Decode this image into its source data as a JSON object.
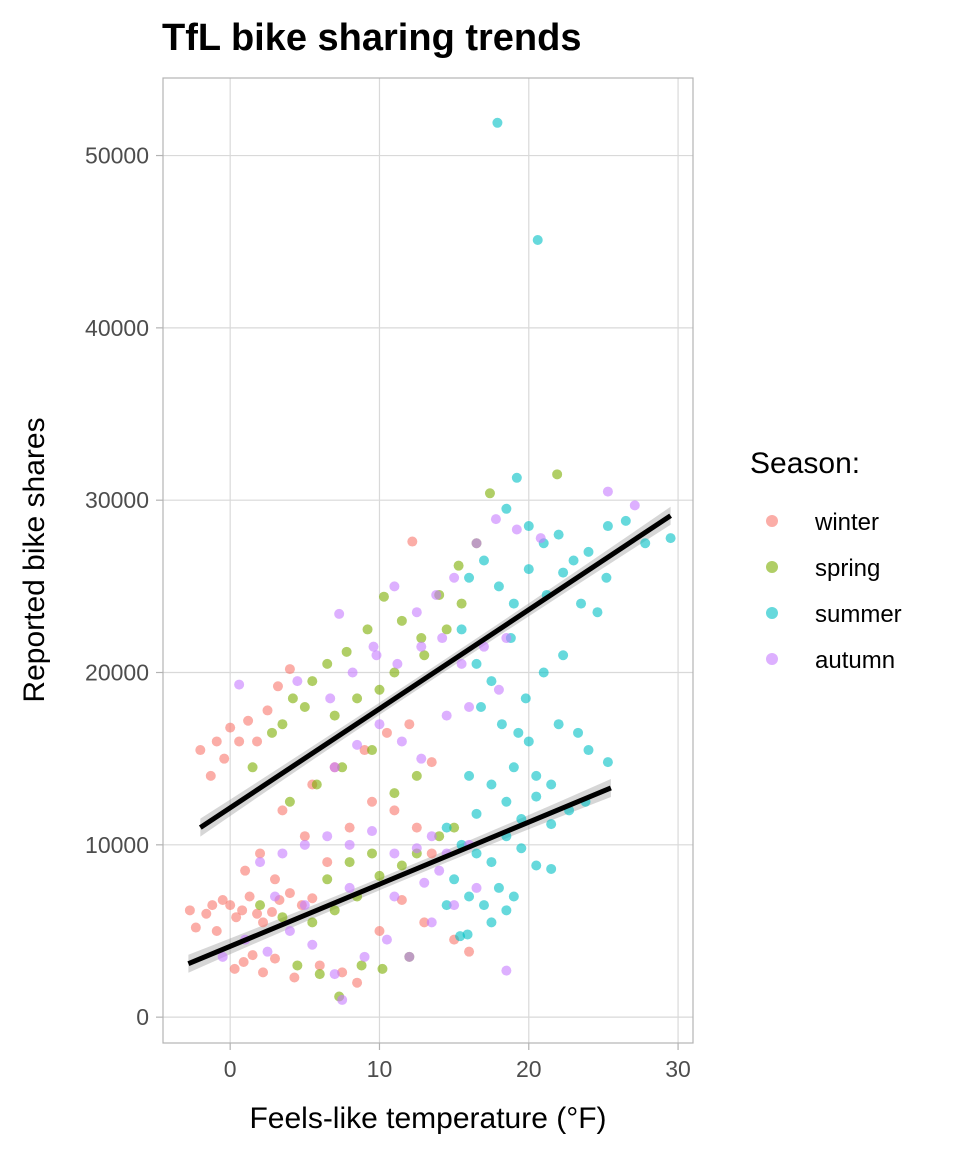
{
  "chart_data": {
    "type": "scatter",
    "title": "TfL bike sharing trends",
    "xlabel": "Feels-like temperature (°F)",
    "ylabel": "Reported bike shares",
    "xlim": [
      -4.5,
      31
    ],
    "ylim": [
      -1500,
      54500
    ],
    "x_ticks": [
      0,
      10,
      20,
      30
    ],
    "y_ticks": [
      0,
      10000,
      20000,
      30000,
      40000,
      50000
    ],
    "grid": true,
    "legend": {
      "title": "Season:",
      "placement": "right",
      "entries": [
        {
          "name": "winter",
          "color": "#F8766D"
        },
        {
          "name": "spring",
          "color": "#7CAE00"
        },
        {
          "name": "summer",
          "color": "#00BFC4"
        },
        {
          "name": "autumn",
          "color": "#C77CFF"
        }
      ]
    },
    "series": [
      {
        "name": "winter",
        "color": "#F8766D",
        "points": [
          [
            -2.7,
            6200
          ],
          [
            -2.3,
            5200
          ],
          [
            -1.6,
            6000
          ],
          [
            -1.2,
            6500
          ],
          [
            -0.9,
            5000
          ],
          [
            -0.5,
            6800
          ],
          [
            0,
            6500
          ],
          [
            0.4,
            5800
          ],
          [
            0.8,
            6200
          ],
          [
            1.3,
            7000
          ],
          [
            1.8,
            6000
          ],
          [
            2.2,
            5500
          ],
          [
            2.8,
            6100
          ],
          [
            3.3,
            6800
          ],
          [
            4,
            7200
          ],
          [
            4.8,
            6500
          ],
          [
            5.5,
            6900
          ],
          [
            -2,
            15500
          ],
          [
            -1.3,
            14000
          ],
          [
            -0.9,
            16000
          ],
          [
            -0.4,
            15000
          ],
          [
            0,
            16800
          ],
          [
            0.6,
            16000
          ],
          [
            1.2,
            17200
          ],
          [
            1.8,
            16000
          ],
          [
            2.5,
            17800
          ],
          [
            3.2,
            19200
          ],
          [
            4,
            20200
          ],
          [
            0.3,
            2800
          ],
          [
            0.9,
            3200
          ],
          [
            1.5,
            3600
          ],
          [
            2.2,
            2600
          ],
          [
            3,
            3400
          ],
          [
            4.3,
            2300
          ],
          [
            6,
            3000
          ],
          [
            7.5,
            2600
          ],
          [
            8.5,
            2000
          ],
          [
            10,
            5000
          ],
          [
            11.5,
            6800
          ],
          [
            13,
            5500
          ],
          [
            15,
            4500
          ],
          [
            16,
            3800
          ],
          [
            12.2,
            27600
          ],
          [
            3.5,
            12000
          ],
          [
            5.5,
            13500
          ],
          [
            7,
            14500
          ],
          [
            9,
            15500
          ],
          [
            10.5,
            16500
          ],
          [
            12,
            17000
          ],
          [
            13.5,
            14800
          ],
          [
            1,
            8500
          ],
          [
            2,
            9500
          ],
          [
            3,
            8000
          ],
          [
            5,
            10500
          ],
          [
            6.5,
            9000
          ],
          [
            8,
            11000
          ],
          [
            9.5,
            12500
          ],
          [
            11,
            12000
          ],
          [
            12.5,
            11000
          ],
          [
            13.5,
            9500
          ]
        ]
      },
      {
        "name": "spring",
        "color": "#7CAE00",
        "points": [
          [
            1.5,
            14500
          ],
          [
            2.8,
            16500
          ],
          [
            4.2,
            18500
          ],
          [
            5.5,
            19500
          ],
          [
            6.5,
            20500
          ],
          [
            7.8,
            21200
          ],
          [
            9.2,
            22500
          ],
          [
            10.3,
            24400
          ],
          [
            11.5,
            23000
          ],
          [
            12.8,
            22000
          ],
          [
            14,
            24500
          ],
          [
            15.3,
            26200
          ],
          [
            16.5,
            27500
          ],
          [
            17.4,
            30400
          ],
          [
            21.9,
            31500
          ],
          [
            3.5,
            17000
          ],
          [
            5,
            18000
          ],
          [
            7,
            17500
          ],
          [
            8.5,
            18500
          ],
          [
            10,
            19000
          ],
          [
            11,
            20000
          ],
          [
            13,
            21000
          ],
          [
            14.5,
            22500
          ],
          [
            15.5,
            24000
          ],
          [
            2,
            6500
          ],
          [
            3.5,
            5800
          ],
          [
            5.5,
            5500
          ],
          [
            7,
            6200
          ],
          [
            8.5,
            7000
          ],
          [
            10,
            8200
          ],
          [
            11.5,
            8800
          ],
          [
            12.5,
            9500
          ],
          [
            14,
            10500
          ],
          [
            15,
            11000
          ],
          [
            4.5,
            3000
          ],
          [
            6,
            2500
          ],
          [
            7.3,
            1200
          ],
          [
            8.8,
            3000
          ],
          [
            10.2,
            2800
          ],
          [
            12,
            3500
          ],
          [
            4,
            12500
          ],
          [
            5.8,
            13500
          ],
          [
            7.5,
            14500
          ],
          [
            9.5,
            15500
          ],
          [
            11,
            13000
          ],
          [
            12.5,
            14000
          ],
          [
            6.5,
            8000
          ],
          [
            8,
            9000
          ],
          [
            9.5,
            9500
          ]
        ]
      },
      {
        "name": "summer",
        "color": "#00BFC4",
        "points": [
          [
            17.9,
            51900
          ],
          [
            20.6,
            45100
          ],
          [
            18.5,
            29500
          ],
          [
            19.2,
            31300
          ],
          [
            20,
            28500
          ],
          [
            21,
            27500
          ],
          [
            22,
            28000
          ],
          [
            23,
            26500
          ],
          [
            24,
            27000
          ],
          [
            25.3,
            28500
          ],
          [
            26.5,
            28800
          ],
          [
            27.8,
            27500
          ],
          [
            29.5,
            27800
          ],
          [
            16,
            25500
          ],
          [
            17,
            26500
          ],
          [
            18,
            25000
          ],
          [
            19,
            24000
          ],
          [
            20,
            26000
          ],
          [
            21.2,
            24500
          ],
          [
            22.3,
            25800
          ],
          [
            23.5,
            24000
          ],
          [
            24.6,
            23500
          ],
          [
            25.2,
            25500
          ],
          [
            15.5,
            22500
          ],
          [
            16.5,
            20500
          ],
          [
            17.5,
            19500
          ],
          [
            18.8,
            22000
          ],
          [
            19.8,
            18500
          ],
          [
            21,
            20000
          ],
          [
            22.3,
            21000
          ],
          [
            16.8,
            18000
          ],
          [
            18.2,
            17000
          ],
          [
            19.3,
            16500
          ],
          [
            20.5,
            14000
          ],
          [
            21.5,
            13500
          ],
          [
            23.3,
            16500
          ],
          [
            24,
            15500
          ],
          [
            16,
            14000
          ],
          [
            17.5,
            13500
          ],
          [
            18.5,
            12500
          ],
          [
            19.5,
            11500
          ],
          [
            20.5,
            12800
          ],
          [
            21.5,
            11200
          ],
          [
            22.7,
            12000
          ],
          [
            23.8,
            12500
          ],
          [
            25.3,
            14800
          ],
          [
            14.5,
            11000
          ],
          [
            15.5,
            10000
          ],
          [
            16.5,
            9500
          ],
          [
            17.5,
            9000
          ],
          [
            18.5,
            10500
          ],
          [
            19.5,
            9800
          ],
          [
            20.5,
            8800
          ],
          [
            21.5,
            8600
          ],
          [
            15,
            8000
          ],
          [
            16,
            7000
          ],
          [
            17,
            6500
          ],
          [
            18,
            7500
          ],
          [
            19,
            7000
          ],
          [
            15.4,
            4700
          ],
          [
            15.9,
            4800
          ],
          [
            18.5,
            6200
          ],
          [
            17.5,
            5500
          ],
          [
            14.5,
            6500
          ],
          [
            16.5,
            11800
          ],
          [
            19,
            14500
          ],
          [
            20,
            16000
          ],
          [
            22,
            17000
          ]
        ]
      },
      {
        "name": "autumn",
        "color": "#C77CFF",
        "points": [
          [
            0.6,
            19300
          ],
          [
            4.5,
            19500
          ],
          [
            7.3,
            23400
          ],
          [
            9.6,
            21500
          ],
          [
            11,
            25000
          ],
          [
            12.5,
            23500
          ],
          [
            13.8,
            24500
          ],
          [
            15,
            25500
          ],
          [
            16.5,
            27500
          ],
          [
            17.8,
            28900
          ],
          [
            19.2,
            28300
          ],
          [
            20.8,
            27800
          ],
          [
            25.3,
            30500
          ],
          [
            27.1,
            29700
          ],
          [
            6.7,
            18500
          ],
          [
            8.2,
            20000
          ],
          [
            9.8,
            21000
          ],
          [
            11.2,
            20500
          ],
          [
            12.8,
            21500
          ],
          [
            14.2,
            22000
          ],
          [
            15.5,
            20500
          ],
          [
            17,
            21500
          ],
          [
            18.5,
            22000
          ],
          [
            7,
            14500
          ],
          [
            8.5,
            15800
          ],
          [
            10,
            17000
          ],
          [
            11.5,
            16000
          ],
          [
            12.8,
            15000
          ],
          [
            14.5,
            17500
          ],
          [
            16,
            18000
          ],
          [
            18,
            19000
          ],
          [
            2,
            9000
          ],
          [
            3.5,
            9500
          ],
          [
            5,
            10000
          ],
          [
            6.5,
            10500
          ],
          [
            8,
            10000
          ],
          [
            9.5,
            10800
          ],
          [
            11,
            9500
          ],
          [
            12.5,
            9800
          ],
          [
            13.5,
            10500
          ],
          [
            14.5,
            9500
          ],
          [
            16,
            10000
          ],
          [
            -0.5,
            3500
          ],
          [
            1,
            4500
          ],
          [
            2.5,
            3800
          ],
          [
            4,
            5000
          ],
          [
            5.5,
            4200
          ],
          [
            7,
            2500
          ],
          [
            7.5,
            1000
          ],
          [
            9,
            3500
          ],
          [
            10.5,
            4500
          ],
          [
            12,
            3500
          ],
          [
            13.5,
            5500
          ],
          [
            15,
            6500
          ],
          [
            16.5,
            7500
          ],
          [
            18.5,
            2700
          ],
          [
            3,
            7000
          ],
          [
            5,
            6500
          ],
          [
            8,
            7500
          ],
          [
            11,
            7000
          ],
          [
            13,
            7800
          ],
          [
            14,
            8500
          ]
        ]
      }
    ],
    "trend_lines": [
      {
        "x": [
          -2,
          29.5
        ],
        "y": [
          11000,
          29100
        ]
      },
      {
        "x": [
          -2.8,
          25.5
        ],
        "y": [
          3100,
          13300
        ]
      }
    ]
  }
}
